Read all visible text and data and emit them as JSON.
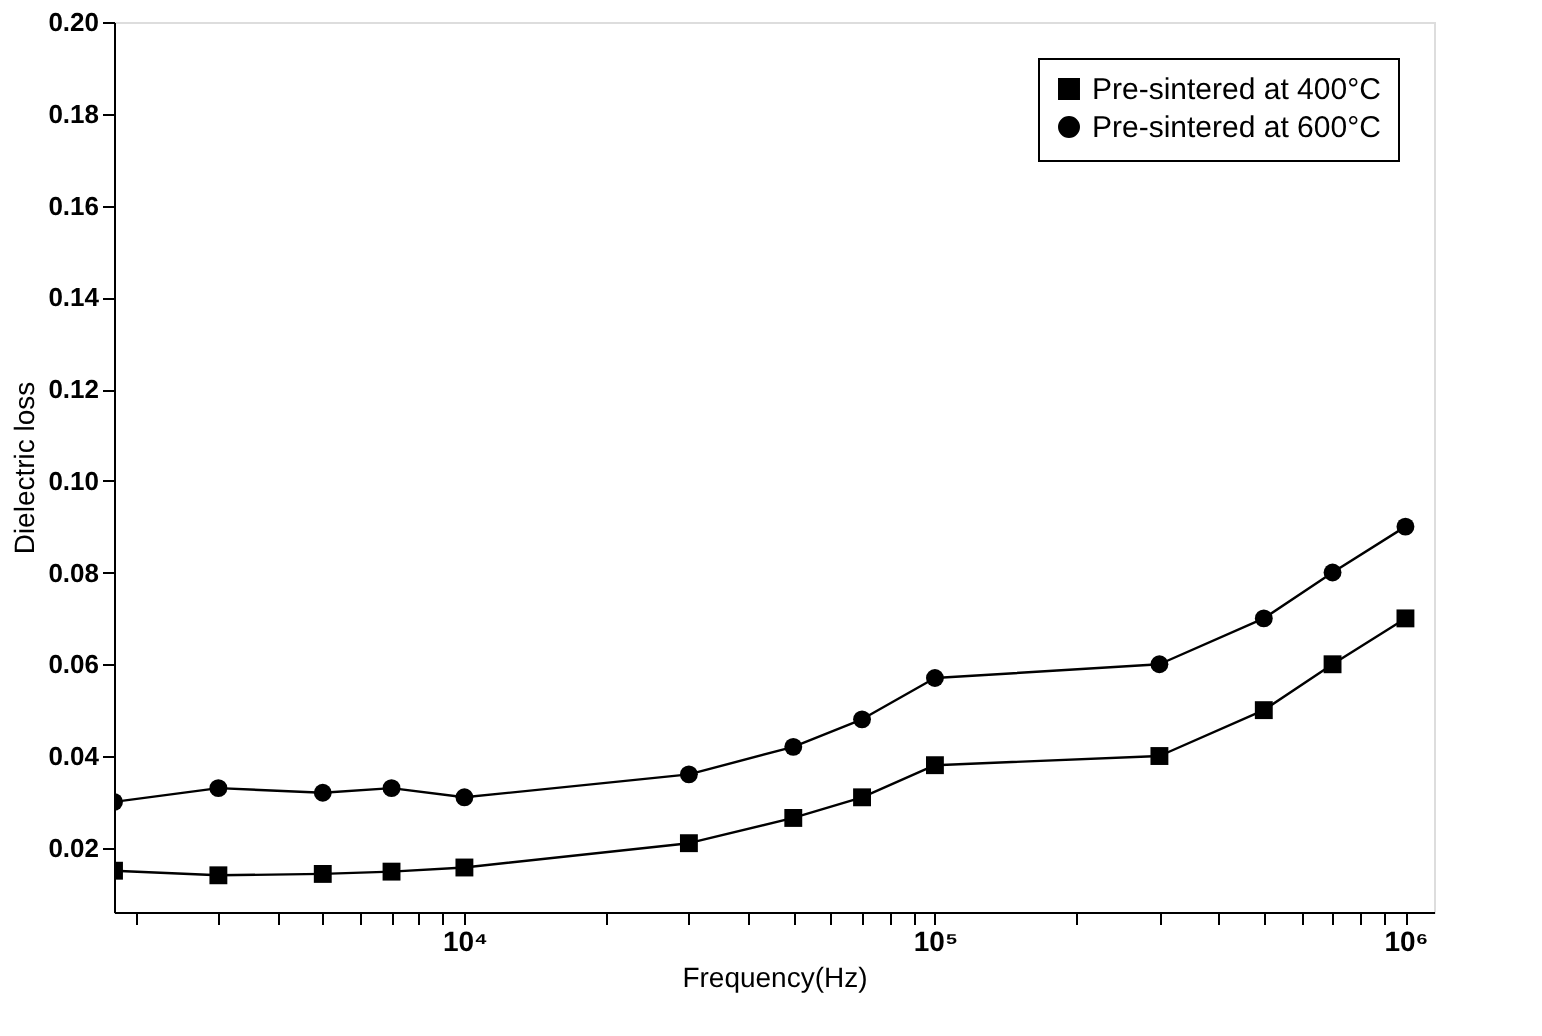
{
  "chart_data": {
    "type": "line",
    "xlabel": "Frequency(Hz)",
    "ylabel": "Dielectric loss",
    "x": [
      1800,
      3000,
      5000,
      7000,
      10000,
      30000,
      50000,
      70000,
      100000,
      300000,
      500000,
      700000,
      1000000
    ],
    "series": [
      {
        "name": "Pre-sintered at 400°C",
        "color": "#000000",
        "marker": "square",
        "values": [
          0.015,
          0.014,
          0.0143,
          0.0148,
          0.0157,
          0.021,
          0.0265,
          0.031,
          0.038,
          0.04,
          0.05,
          0.06,
          0.07
        ]
      },
      {
        "name": "Pre-sintered at 600°C",
        "color": "#000000",
        "marker": "circle",
        "values": [
          0.03,
          0.033,
          0.032,
          0.033,
          0.031,
          0.036,
          0.042,
          0.048,
          0.057,
          0.06,
          0.07,
          0.08,
          0.09
        ]
      }
    ],
    "log": "x",
    "xlim": [
      1800,
      1150000
    ],
    "xticks": [
      {
        "value": 2000,
        "label": null
      },
      {
        "value": 3000,
        "label": null
      },
      {
        "value": 4000,
        "label": null
      },
      {
        "value": 5000,
        "label": null
      },
      {
        "value": 6000,
        "label": null
      },
      {
        "value": 7000,
        "label": null
      },
      {
        "value": 8000,
        "label": null
      },
      {
        "value": 9000,
        "label": null
      },
      {
        "value": 10000,
        "label": "10⁴"
      },
      {
        "value": 20000,
        "label": null
      },
      {
        "value": 30000,
        "label": null
      },
      {
        "value": 40000,
        "label": null
      },
      {
        "value": 50000,
        "label": null
      },
      {
        "value": 60000,
        "label": null
      },
      {
        "value": 70000,
        "label": null
      },
      {
        "value": 80000,
        "label": null
      },
      {
        "value": 90000,
        "label": null
      },
      {
        "value": 100000,
        "label": "10⁵"
      },
      {
        "value": 200000,
        "label": null
      },
      {
        "value": 300000,
        "label": null
      },
      {
        "value": 400000,
        "label": null
      },
      {
        "value": 500000,
        "label": null
      },
      {
        "value": 600000,
        "label": null
      },
      {
        "value": 700000,
        "label": null
      },
      {
        "value": 800000,
        "label": null
      },
      {
        "value": 900000,
        "label": null
      },
      {
        "value": 1000000,
        "label": "10⁶"
      }
    ],
    "ylim": [
      0.006,
      0.2
    ],
    "yticks": [
      0.02,
      0.04,
      0.06,
      0.08,
      {
        "value": 0.1,
        "label": "0.10"
      },
      0.12,
      0.14,
      0.16,
      0.18,
      {
        "value": 0.2,
        "label": "0.20"
      }
    ],
    "grid": false,
    "legend": "top right",
    "line_style": "solid"
  }
}
